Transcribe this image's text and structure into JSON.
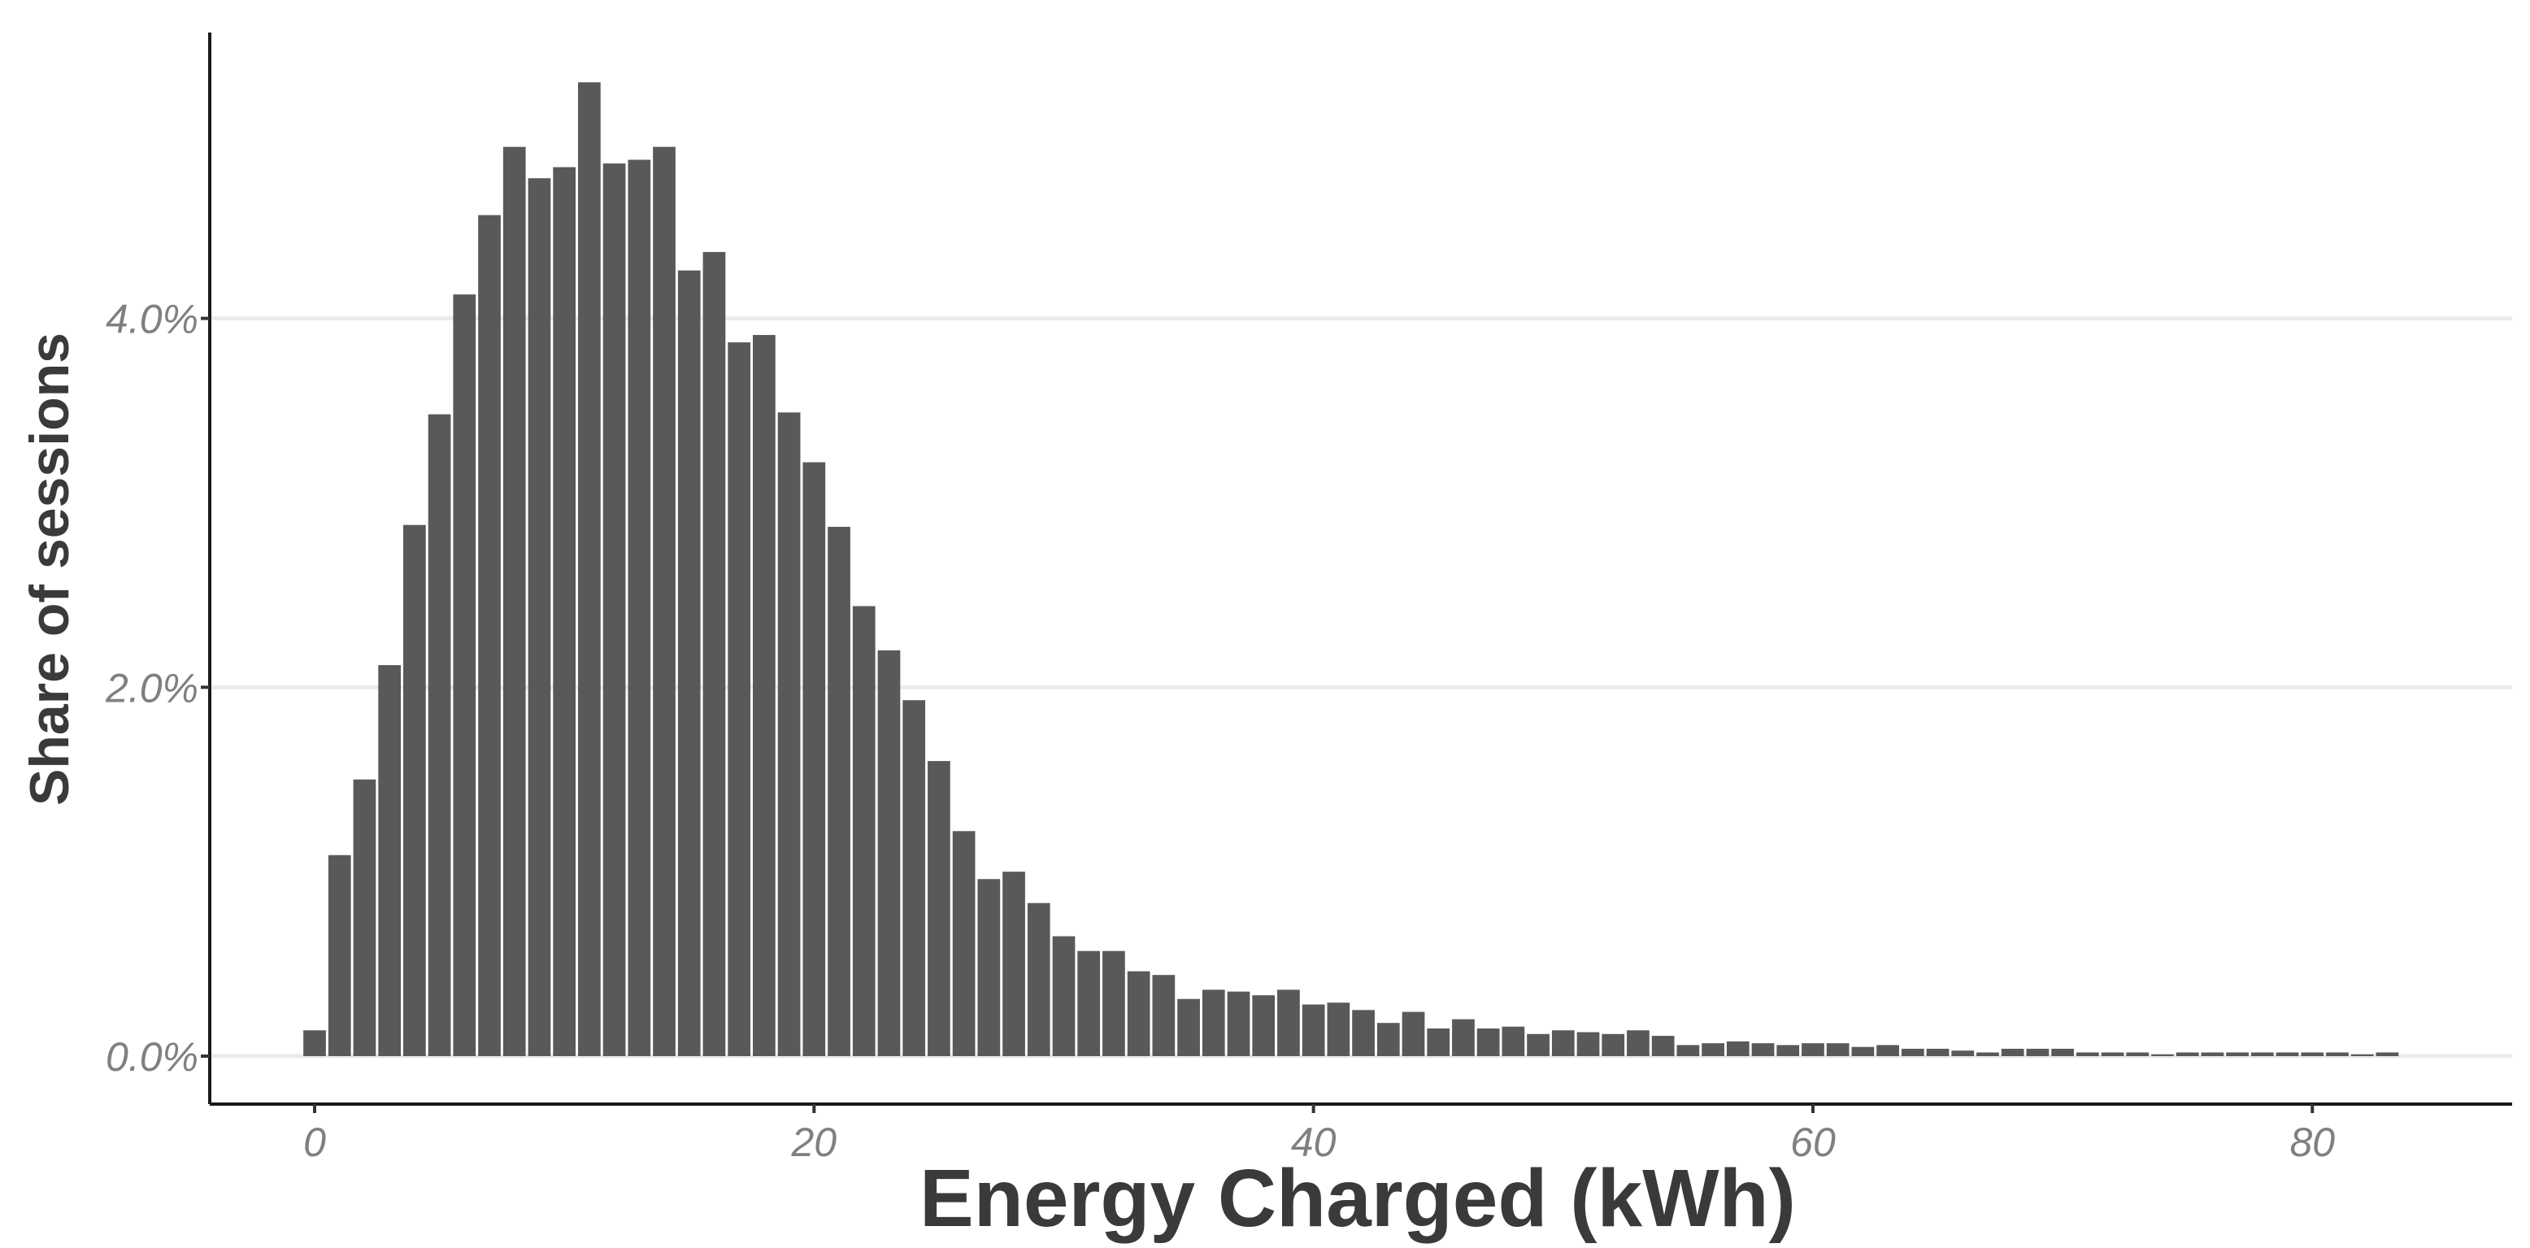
{
  "chart_data": {
    "type": "bar",
    "xlabel": "Energy Charged (kWh)",
    "ylabel": "Share of sessions",
    "x_ticks": [
      0,
      20,
      40,
      60,
      80
    ],
    "x_tick_labels": [
      "0",
      "20",
      "40",
      "60",
      "80"
    ],
    "y_ticks": [
      0,
      0.02,
      0.04
    ],
    "y_tick_labels": [
      "0.0%",
      "2.0%",
      "4.0%"
    ],
    "xlim": [
      -4.2,
      88
    ],
    "ylim": [
      -0.0026,
      0.0555
    ],
    "grid": "horizontal major",
    "legend": "none",
    "bar_color": "#595959",
    "bin_width": 1,
    "x": [
      0,
      1,
      2,
      3,
      4,
      5,
      6,
      7,
      8,
      9,
      10,
      11,
      12,
      13,
      14,
      15,
      16,
      17,
      18,
      19,
      20,
      21,
      22,
      23,
      24,
      25,
      26,
      27,
      28,
      29,
      30,
      31,
      32,
      33,
      34,
      35,
      36,
      37,
      38,
      39,
      40,
      41,
      42,
      43,
      44,
      45,
      46,
      47,
      48,
      49,
      50,
      51,
      52,
      53,
      54,
      55,
      56,
      57,
      58,
      59,
      60,
      61,
      62,
      63,
      64,
      65,
      66,
      67,
      68,
      69,
      70,
      71,
      72,
      73,
      74,
      75,
      76,
      77,
      78,
      79,
      80,
      81,
      82,
      83
    ],
    "values": [
      0.0014,
      0.0109,
      0.015,
      0.0212,
      0.0288,
      0.0348,
      0.0413,
      0.0456,
      0.0493,
      0.0476,
      0.0482,
      0.0528,
      0.0484,
      0.0486,
      0.0493,
      0.0426,
      0.0436,
      0.0387,
      0.0391,
      0.0349,
      0.0322,
      0.0287,
      0.0244,
      0.022,
      0.0193,
      0.016,
      0.0122,
      0.0096,
      0.01,
      0.0083,
      0.0065,
      0.0057,
      0.0057,
      0.0046,
      0.0044,
      0.0031,
      0.0036,
      0.0035,
      0.0033,
      0.0036,
      0.0028,
      0.0029,
      0.0025,
      0.0018,
      0.0024,
      0.0015,
      0.002,
      0.0015,
      0.0016,
      0.0012,
      0.0014,
      0.0013,
      0.0012,
      0.0014,
      0.0011,
      0.0006,
      0.0007,
      0.0008,
      0.0007,
      0.0006,
      0.0007,
      0.0007,
      0.0005,
      0.0006,
      0.0004,
      0.0004,
      0.0003,
      0.0002,
      0.0004,
      0.0004,
      0.0004,
      0.0002,
      0.0002,
      0.0002,
      0.0001,
      0.0002,
      0.0002,
      0.0002,
      0.0002,
      0.0002,
      0.0002,
      0.0002,
      0.0001,
      0.0002
    ]
  }
}
